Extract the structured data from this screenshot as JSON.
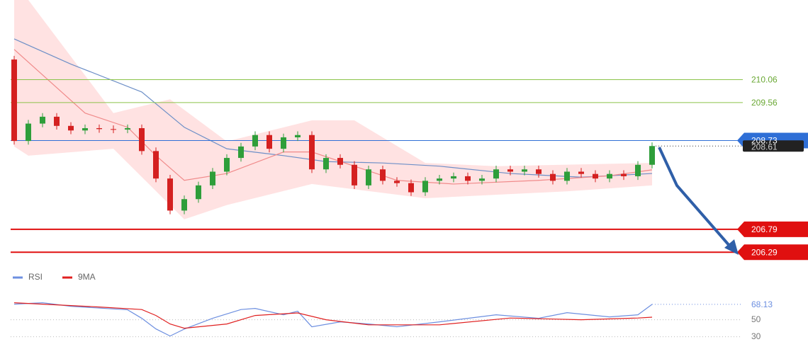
{
  "chart_data": {
    "type": "candlestick",
    "ylim": [
      206.0,
      211.8
    ],
    "open": [
      210.5,
      208.72,
      209.1,
      209.25,
      209.05,
      208.95,
      209.0,
      208.98,
      208.97,
      209.0,
      208.5,
      207.9,
      207.2,
      207.45,
      207.75,
      208.05,
      208.35,
      208.6,
      208.85,
      208.55,
      208.8,
      208.85,
      208.1,
      208.35,
      208.2,
      207.75,
      208.1,
      207.85,
      207.8,
      207.6,
      207.85,
      207.9,
      207.95,
      207.85,
      207.9,
      208.1,
      208.05,
      208.1,
      208.0,
      207.85,
      208.05,
      208.0,
      207.9,
      208.0,
      207.95,
      208.2
    ],
    "high": [
      210.58,
      209.18,
      209.33,
      209.33,
      209.13,
      209.08,
      209.08,
      209.06,
      209.08,
      209.08,
      208.58,
      207.98,
      207.53,
      207.83,
      208.13,
      208.43,
      208.68,
      208.93,
      208.93,
      208.88,
      208.93,
      208.93,
      208.43,
      208.43,
      208.28,
      208.18,
      208.18,
      207.93,
      207.88,
      207.93,
      207.98,
      208.03,
      208.03,
      207.98,
      208.18,
      208.18,
      208.18,
      208.18,
      208.08,
      208.13,
      208.13,
      208.08,
      208.08,
      208.08,
      208.28,
      208.69
    ],
    "low": [
      208.64,
      208.64,
      209.02,
      208.97,
      208.87,
      208.87,
      208.9,
      208.89,
      208.89,
      208.42,
      207.82,
      207.12,
      207.12,
      207.37,
      207.67,
      207.97,
      208.27,
      208.52,
      208.47,
      208.47,
      208.72,
      208.02,
      208.02,
      208.12,
      207.67,
      207.67,
      207.77,
      207.72,
      207.52,
      207.52,
      207.77,
      207.82,
      207.77,
      207.77,
      207.82,
      207.97,
      207.97,
      207.92,
      207.77,
      207.77,
      207.92,
      207.82,
      207.82,
      207.87,
      207.87,
      208.12
    ],
    "close": [
      208.72,
      209.1,
      209.25,
      209.05,
      208.95,
      209.0,
      208.98,
      208.97,
      209.0,
      208.5,
      207.9,
      207.2,
      207.45,
      207.75,
      208.05,
      208.35,
      208.6,
      208.85,
      208.55,
      208.8,
      208.85,
      208.1,
      208.35,
      208.2,
      207.75,
      208.1,
      207.85,
      207.8,
      207.6,
      207.85,
      207.9,
      207.95,
      207.85,
      207.9,
      208.1,
      208.05,
      208.1,
      208.0,
      207.85,
      208.05,
      208.0,
      207.9,
      208.0,
      207.95,
      208.2,
      208.61
    ],
    "up_color": "#2e9e3a",
    "down_color": "#d42020",
    "band": {
      "color": "#ffd6d6",
      "upper": {
        "x": [
          0,
          1,
          7,
          11,
          15,
          21,
          24,
          29,
          34,
          45
        ],
        "values": [
          211.8,
          211.8,
          209.33,
          209.63,
          208.71,
          209.17,
          209.17,
          208.24,
          208.17,
          208.24
        ]
      },
      "lower": {
        "x": [
          0,
          1,
          7,
          12,
          15,
          21,
          29,
          39,
          45
        ],
        "values": [
          208.6,
          208.4,
          208.55,
          207.01,
          207.32,
          207.78,
          207.47,
          207.62,
          207.75
        ]
      }
    },
    "overlays": [
      {
        "color": "#6d8fc7",
        "x": [
          0,
          4,
          9,
          12,
          15,
          19,
          22,
          26,
          30,
          35,
          40,
          45
        ],
        "values": [
          210.95,
          210.4,
          209.79,
          209.02,
          208.55,
          208.4,
          208.27,
          208.24,
          208.17,
          208.01,
          207.93,
          208.01
        ]
      },
      {
        "color": "#f08a8a",
        "x": [
          0,
          5,
          8,
          10,
          12,
          15,
          19,
          21,
          24,
          27,
          31,
          37,
          42,
          45
        ],
        "values": [
          210.72,
          209.33,
          209.02,
          208.4,
          207.86,
          208.01,
          208.48,
          208.48,
          208.17,
          207.86,
          207.78,
          207.86,
          207.96,
          208.09
        ]
      }
    ],
    "levels": [
      {
        "value": 210.06,
        "color": "#8bc34a",
        "label_color": "#6aa834"
      },
      {
        "value": 209.56,
        "color": "#8bc34a",
        "label_color": "#6aa834"
      },
      {
        "value": 208.73,
        "color": "#2f6fd6",
        "label_color": "#2f6fd6",
        "boxed": true
      },
      {
        "value": 206.79,
        "color": "#e01010",
        "label_color": "#e01010",
        "boxed": true
      },
      {
        "value": 206.29,
        "color": "#e01010",
        "label_color": "#e01010",
        "boxed": true
      }
    ],
    "rsi": {
      "ylim": [
        18,
        93
      ],
      "yticks": [
        50,
        30
      ],
      "series": [
        {
          "name": "RSI",
          "color": "#6d8fe0",
          "x": [
            0,
            2,
            4,
            8,
            9,
            10,
            11,
            12,
            14,
            16,
            17,
            19,
            20,
            21,
            23,
            25,
            27,
            30,
            34,
            37,
            39,
            42,
            44,
            45
          ],
          "values": [
            68.3,
            70,
            65.8,
            61.7,
            51.7,
            39.2,
            30.8,
            39,
            51.7,
            62,
            63.3,
            55.8,
            60,
            41.7,
            47.5,
            45,
            41.7,
            47.5,
            55.8,
            51.7,
            58.3,
            53.3,
            55.8,
            68.13
          ]
        },
        {
          "name": "9MA",
          "color": "#e02020",
          "x": [
            0,
            2,
            6,
            9,
            10,
            11,
            12,
            15,
            17,
            20,
            22,
            25,
            30,
            35,
            40,
            44,
            45
          ],
          "values": [
            70,
            68.3,
            65,
            62,
            55,
            45,
            40,
            45,
            55,
            58,
            50,
            44,
            44,
            52,
            50,
            52,
            53
          ]
        }
      ]
    }
  }
}
